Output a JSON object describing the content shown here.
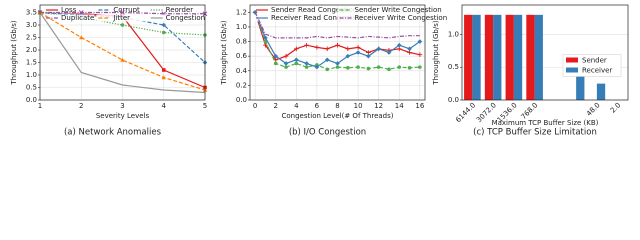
{
  "chart_data": [
    {
      "type": "line",
      "caption": "(a) Network Anomalies",
      "xlabel": "Severity Levels",
      "ylabel": "Throughput (Gb/s)",
      "x": [
        1,
        2,
        3,
        4,
        5
      ],
      "xlim": [
        1,
        5
      ],
      "xticks": [
        1,
        2,
        3,
        4,
        5
      ],
      "ylim": [
        0,
        3.8
      ],
      "yticks": [
        {
          "value": 0,
          "label": "0.0"
        },
        0.5,
        {
          "value": 1,
          "label": "1.0"
        },
        1.5,
        {
          "value": 2,
          "label": "2.0"
        },
        2.5,
        {
          "value": 3,
          "label": "3.0"
        },
        3.5
      ],
      "grid": true,
      "legend_columns": 3,
      "series": [
        {
          "name": "Loss",
          "color": "#e41a1c",
          "linestyle": "solid",
          "marker": "square",
          "values": [
            3.5,
            3.45,
            3.35,
            1.2,
            0.5
          ]
        },
        {
          "name": "Corrupt",
          "color": "#377eb8",
          "linestyle": "dashed",
          "marker": "diamond",
          "values": [
            3.5,
            3.4,
            3.3,
            3.0,
            1.5
          ]
        },
        {
          "name": "Reorder",
          "color": "#4daf4a",
          "linestyle": "dotted",
          "marker": "circle",
          "values": [
            3.5,
            3.3,
            3.0,
            2.7,
            2.6
          ]
        },
        {
          "name": "Duplicate",
          "color": "#984ea3",
          "linestyle": "dashdot",
          "marker": "x",
          "values": [
            3.5,
            3.5,
            3.5,
            3.45,
            3.45
          ]
        },
        {
          "name": "Jitter",
          "color": "#ff7f00",
          "linestyle": "dashed",
          "marker": "triangle",
          "values": [
            3.5,
            2.5,
            1.6,
            0.9,
            0.4
          ]
        },
        {
          "name": "Congestion",
          "color": "#999999",
          "linestyle": "solid",
          "marker": "none",
          "values": [
            3.5,
            1.1,
            0.6,
            0.4,
            0.3
          ]
        }
      ]
    },
    {
      "type": "line",
      "caption": "(b) I/O Congestion",
      "xlabel": "Congestion Level(# Of Threads)",
      "ylabel": "Throughput (Gb/s)",
      "x": [
        0,
        1,
        2,
        3,
        4,
        5,
        6,
        7,
        8,
        9,
        10,
        11,
        12,
        13,
        14,
        15,
        16
      ],
      "xlim": [
        -0.5,
        16.5
      ],
      "xticks": [
        0,
        2,
        4,
        6,
        8,
        10,
        12,
        14,
        16
      ],
      "ylim": [
        0,
        1.3
      ],
      "yticks": [
        {
          "value": 0,
          "label": "0.0"
        },
        0.2,
        0.4,
        0.6,
        0.8,
        {
          "value": 1,
          "label": "1.0"
        },
        1.2
      ],
      "grid": true,
      "legend_columns": 2,
      "series": [
        {
          "name": "Sender Read Congestion",
          "color": "#e41a1c",
          "linestyle": "solid",
          "marker": "plus",
          "values": [
            1.2,
            0.75,
            0.55,
            0.6,
            0.7,
            0.75,
            0.72,
            0.7,
            0.75,
            0.7,
            0.72,
            0.65,
            0.7,
            0.68,
            0.7,
            0.65,
            0.62
          ]
        },
        {
          "name": "Sender Write Congestion",
          "color": "#4daf4a",
          "linestyle": "dashed",
          "marker": "circle",
          "values": [
            1.2,
            0.8,
            0.5,
            0.45,
            0.5,
            0.45,
            0.48,
            0.42,
            0.45,
            0.44,
            0.45,
            0.43,
            0.45,
            0.42,
            0.45,
            0.44,
            0.45
          ]
        },
        {
          "name": "Receiver Read Congestion",
          "color": "#377eb8",
          "linestyle": "solid",
          "marker": "diamond",
          "values": [
            1.2,
            0.85,
            0.6,
            0.5,
            0.55,
            0.5,
            0.45,
            0.55,
            0.5,
            0.6,
            0.65,
            0.6,
            0.7,
            0.65,
            0.75,
            0.7,
            0.8
          ]
        },
        {
          "name": "Receiver Write Congestion",
          "color": "#984ea3",
          "linestyle": "dashdot",
          "marker": "none",
          "values": [
            1.2,
            0.9,
            0.85,
            0.85,
            0.85,
            0.85,
            0.87,
            0.85,
            0.87,
            0.86,
            0.85,
            0.87,
            0.86,
            0.85,
            0.87,
            0.88,
            0.88
          ]
        }
      ]
    },
    {
      "type": "bar",
      "caption": "(c) TCP Buffer Size Limitation",
      "xlabel": "Maximum TCP Buffer Size (KB)",
      "ylabel": "Throughput (Gb/s)",
      "categories": [
        "6144.0",
        "3072.0",
        "1536.0",
        "768.0",
        null,
        null,
        "48.0",
        "2.0"
      ],
      "ylim": [
        0,
        1.45
      ],
      "yticks": [
        {
          "value": 0,
          "label": "0.0"
        },
        0.5,
        {
          "value": 1,
          "label": "1.0"
        }
      ],
      "grid": true,
      "legend": "right",
      "series": [
        {
          "name": "Sender",
          "color": "#e41a1c",
          "values": [
            1.3,
            1.3,
            1.3,
            1.3,
            0,
            0,
            0,
            0
          ]
        },
        {
          "name": "Receiver",
          "color": "#377eb8",
          "values": [
            1.3,
            1.3,
            1.3,
            1.3,
            0,
            0.4,
            0.25,
            0
          ]
        }
      ]
    }
  ]
}
